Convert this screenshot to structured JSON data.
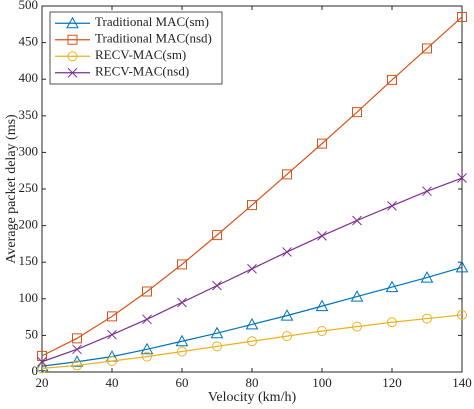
{
  "chart_data": {
    "type": "line",
    "xlabel": "Velocity (km/h)",
    "ylabel": "Average packet delay (ms)",
    "x": [
      20,
      30,
      40,
      50,
      60,
      70,
      80,
      90,
      100,
      110,
      120,
      130,
      140
    ],
    "xlim": [
      20,
      140
    ],
    "xticks": [
      20,
      40,
      60,
      80,
      100,
      120,
      140
    ],
    "ylim": [
      0,
      500
    ],
    "yticks": [
      0,
      50,
      100,
      150,
      200,
      250,
      300,
      350,
      400,
      450,
      500
    ],
    "legend": "upper left",
    "series": [
      {
        "name": "Traditional MAC(sm)",
        "color": "#0072bd",
        "marker": "triangle",
        "values": [
          8,
          14,
          21,
          31,
          42,
          53,
          65,
          77,
          90,
          103,
          116,
          129,
          143
        ]
      },
      {
        "name": "Traditional MAC(nsd)",
        "color": "#d95319",
        "marker": "square",
        "values": [
          22,
          46,
          76,
          110,
          147,
          187,
          228,
          270,
          312,
          355,
          399,
          442,
          485
        ]
      },
      {
        "name": "RECV-MAC(sm)",
        "color": "#edb120",
        "marker": "circle",
        "values": [
          5,
          9,
          15,
          21,
          28,
          35,
          42,
          49,
          56,
          62,
          68,
          73,
          78
        ]
      },
      {
        "name": "RECV-MAC(nsd)",
        "color": "#7e2f8e",
        "marker": "x",
        "values": [
          14,
          31,
          51,
          72,
          95,
          118,
          141,
          164,
          186,
          207,
          227,
          247,
          265
        ]
      }
    ]
  }
}
